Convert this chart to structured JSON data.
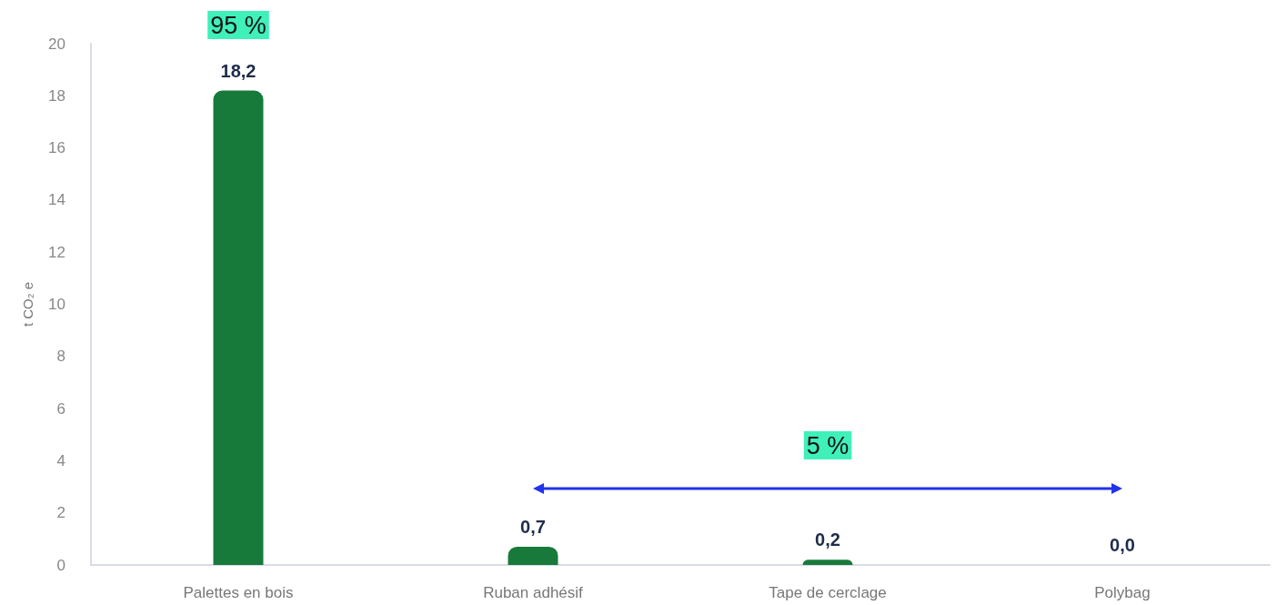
{
  "chart_data": {
    "type": "bar",
    "ylabel": "t CO₂ e",
    "categories": [
      "Palettes en bois",
      "Ruban adhésif",
      "Tape de cerclage",
      "Polybag"
    ],
    "values": [
      18.2,
      0.7,
      0.2,
      0.0
    ],
    "color": "#177a3a",
    "value_labels": [
      "18,2",
      "0,7",
      "0,2",
      "0,0"
    ],
    "ylim": [
      0,
      20
    ],
    "yticks": [
      0,
      2,
      4,
      6,
      8,
      10,
      12,
      14,
      16,
      18,
      20
    ],
    "grid": false,
    "annotations": [
      "95 %",
      "5 %"
    ]
  }
}
